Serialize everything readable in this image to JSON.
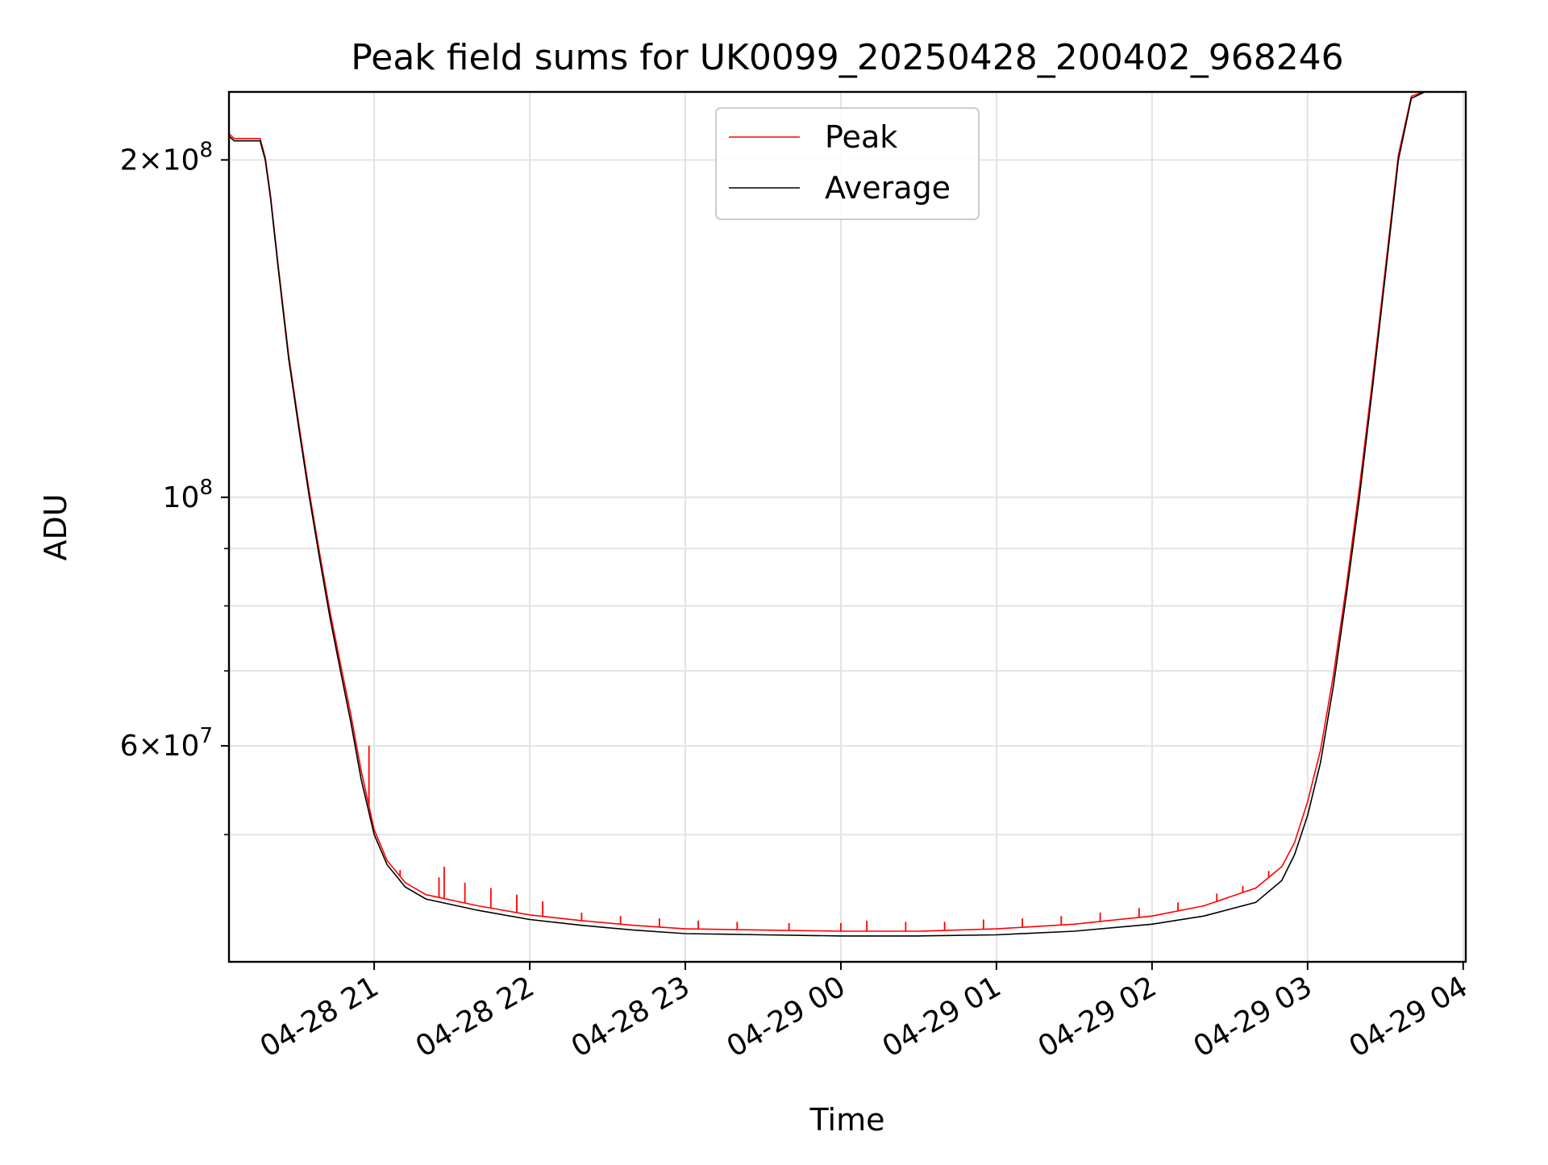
{
  "chart_data": {
    "type": "line",
    "title": "Peak field sums for UK0099_20250428_200402_968246",
    "xlabel": "Time",
    "ylabel": "ADU",
    "yscale": "log",
    "grid": true,
    "legend": "top-center",
    "xlim": [
      "2025-04-28 20:04",
      "2025-04-29 04:01"
    ],
    "ylim": [
      38500000,
      230000000
    ],
    "x_ticks": [
      {
        "t": "2025-04-28 21:00",
        "label": "04-28 21"
      },
      {
        "t": "2025-04-28 22:00",
        "label": "04-28 22"
      },
      {
        "t": "2025-04-28 23:00",
        "label": "04-28 23"
      },
      {
        "t": "2025-04-29 00:00",
        "label": "04-29 00"
      },
      {
        "t": "2025-04-29 01:00",
        "label": "04-29 01"
      },
      {
        "t": "2025-04-29 02:00",
        "label": "04-29 02"
      },
      {
        "t": "2025-04-29 03:00",
        "label": "04-29 03"
      },
      {
        "t": "2025-04-29 04:00",
        "label": "04-29 04"
      }
    ],
    "y_major_ticks": [
      {
        "v": 200000000,
        "mant": "2×10",
        "exp": "8"
      },
      {
        "v": 100000000,
        "mant": "10",
        "exp": "8"
      },
      {
        "v": 60000000,
        "mant": "6×10",
        "exp": "7"
      }
    ],
    "y_minor_ticks": [
      50000000,
      70000000,
      80000000,
      90000000
    ],
    "series": [
      {
        "name": "Average",
        "color": "#000000",
        "points": [
          [
            "2025-04-28 20:04",
            210000000
          ],
          [
            "2025-04-28 20:06",
            208000000
          ],
          [
            "2025-04-28 20:16",
            208000000
          ],
          [
            "2025-04-28 20:18",
            200000000
          ],
          [
            "2025-04-28 20:20",
            185000000
          ],
          [
            "2025-04-28 20:23",
            160000000
          ],
          [
            "2025-04-28 20:27",
            133000000
          ],
          [
            "2025-04-28 20:31",
            115000000
          ],
          [
            "2025-04-28 20:35",
            100000000
          ],
          [
            "2025-04-28 20:39",
            88000000
          ],
          [
            "2025-04-28 20:43",
            78000000
          ],
          [
            "2025-04-28 20:47",
            70000000
          ],
          [
            "2025-04-28 20:51",
            63000000
          ],
          [
            "2025-04-28 20:55",
            56000000
          ],
          [
            "2025-04-28 21:00",
            50000000
          ],
          [
            "2025-04-28 21:05",
            47000000
          ],
          [
            "2025-04-28 21:12",
            44900000
          ],
          [
            "2025-04-28 21:20",
            43800000
          ],
          [
            "2025-04-28 21:40",
            42800000
          ],
          [
            "2025-04-28 22:00",
            42000000
          ],
          [
            "2025-04-28 22:20",
            41500000
          ],
          [
            "2025-04-28 22:40",
            41100000
          ],
          [
            "2025-04-28 23:00",
            40800000
          ],
          [
            "2025-04-28 23:30",
            40700000
          ],
          [
            "2025-04-29 00:00",
            40600000
          ],
          [
            "2025-04-29 00:30",
            40600000
          ],
          [
            "2025-04-29 01:00",
            40700000
          ],
          [
            "2025-04-29 01:30",
            41000000
          ],
          [
            "2025-04-29 02:00",
            41600000
          ],
          [
            "2025-04-29 02:20",
            42300000
          ],
          [
            "2025-04-29 02:40",
            43500000
          ],
          [
            "2025-04-29 02:50",
            45500000
          ],
          [
            "2025-04-29 02:55",
            48000000
          ],
          [
            "2025-04-29 03:00",
            52000000
          ],
          [
            "2025-04-29 03:05",
            58000000
          ],
          [
            "2025-04-29 03:10",
            68000000
          ],
          [
            "2025-04-29 03:15",
            82000000
          ],
          [
            "2025-04-29 03:20",
            100000000
          ],
          [
            "2025-04-29 03:25",
            125000000
          ],
          [
            "2025-04-29 03:30",
            158000000
          ],
          [
            "2025-04-29 03:35",
            200000000
          ],
          [
            "2025-04-29 03:40",
            227000000
          ],
          [
            "2025-04-29 03:47",
            231000000
          ]
        ]
      },
      {
        "name": "Peak",
        "color": "#ff0000",
        "points": [
          [
            "2025-04-28 20:04",
            211000000
          ],
          [
            "2025-04-28 20:06",
            209000000
          ],
          [
            "2025-04-28 20:16",
            209000000
          ],
          [
            "2025-04-28 20:18",
            201000000
          ],
          [
            "2025-04-28 20:20",
            186000000
          ],
          [
            "2025-04-28 20:23",
            161000000
          ],
          [
            "2025-04-28 20:27",
            134000000
          ],
          [
            "2025-04-28 20:31",
            116000000
          ],
          [
            "2025-04-28 20:35",
            101000000
          ],
          [
            "2025-04-28 20:39",
            89000000
          ],
          [
            "2025-04-28 20:43",
            79000000
          ],
          [
            "2025-04-28 20:47",
            71000000
          ],
          [
            "2025-04-28 20:51",
            64000000
          ],
          [
            "2025-04-28 20:55",
            57000000
          ],
          [
            "2025-04-28 21:00",
            50500000
          ],
          [
            "2025-04-28 21:05",
            47400000
          ],
          [
            "2025-04-28 21:12",
            45300000
          ],
          [
            "2025-04-28 21:20",
            44200000
          ],
          [
            "2025-04-28 21:40",
            43200000
          ],
          [
            "2025-04-28 22:00",
            42400000
          ],
          [
            "2025-04-28 22:20",
            41900000
          ],
          [
            "2025-04-28 22:40",
            41500000
          ],
          [
            "2025-04-28 23:00",
            41200000
          ],
          [
            "2025-04-28 23:30",
            41100000
          ],
          [
            "2025-04-29 00:00",
            41000000
          ],
          [
            "2025-04-29 00:30",
            41000000
          ],
          [
            "2025-04-29 01:00",
            41200000
          ],
          [
            "2025-04-29 01:30",
            41600000
          ],
          [
            "2025-04-29 02:00",
            42300000
          ],
          [
            "2025-04-29 02:20",
            43200000
          ],
          [
            "2025-04-29 02:40",
            44800000
          ],
          [
            "2025-04-29 02:50",
            46800000
          ],
          [
            "2025-04-29 02:55",
            49200000
          ],
          [
            "2025-04-29 03:00",
            53500000
          ],
          [
            "2025-04-29 03:05",
            59500000
          ],
          [
            "2025-04-29 03:10",
            69500000
          ],
          [
            "2025-04-29 03:15",
            83500000
          ],
          [
            "2025-04-29 03:20",
            102000000
          ],
          [
            "2025-04-29 03:25",
            127000000
          ],
          [
            "2025-04-29 03:30",
            160000000
          ],
          [
            "2025-04-29 03:35",
            202000000
          ],
          [
            "2025-04-29 03:40",
            228000000
          ],
          [
            "2025-04-29 03:47",
            231000000
          ]
        ],
        "spikes": [
          [
            "2025-04-28 20:58",
            60000000
          ],
          [
            "2025-04-28 21:10",
            46500000
          ],
          [
            "2025-04-28 21:25",
            45800000
          ],
          [
            "2025-04-28 21:27",
            46800000
          ],
          [
            "2025-04-28 21:35",
            45300000
          ],
          [
            "2025-04-28 21:45",
            44800000
          ],
          [
            "2025-04-28 21:55",
            44200000
          ],
          [
            "2025-04-28 22:05",
            43600000
          ],
          [
            "2025-04-28 22:20",
            42600000
          ],
          [
            "2025-04-28 22:35",
            42300000
          ],
          [
            "2025-04-28 22:50",
            42100000
          ],
          [
            "2025-04-28 23:05",
            41900000
          ],
          [
            "2025-04-28 23:20",
            41800000
          ],
          [
            "2025-04-28 23:40",
            41700000
          ],
          [
            "2025-04-29 00:00",
            41700000
          ],
          [
            "2025-04-29 00:10",
            41900000
          ],
          [
            "2025-04-29 00:25",
            41800000
          ],
          [
            "2025-04-29 00:40",
            41800000
          ],
          [
            "2025-04-29 00:55",
            42000000
          ],
          [
            "2025-04-29 01:10",
            42100000
          ],
          [
            "2025-04-29 01:25",
            42300000
          ],
          [
            "2025-04-29 01:40",
            42600000
          ],
          [
            "2025-04-29 01:55",
            43000000
          ],
          [
            "2025-04-29 02:10",
            43500000
          ],
          [
            "2025-04-29 02:25",
            44300000
          ],
          [
            "2025-04-29 02:35",
            45000000
          ],
          [
            "2025-04-29 02:45",
            46400000
          ]
        ]
      }
    ]
  }
}
